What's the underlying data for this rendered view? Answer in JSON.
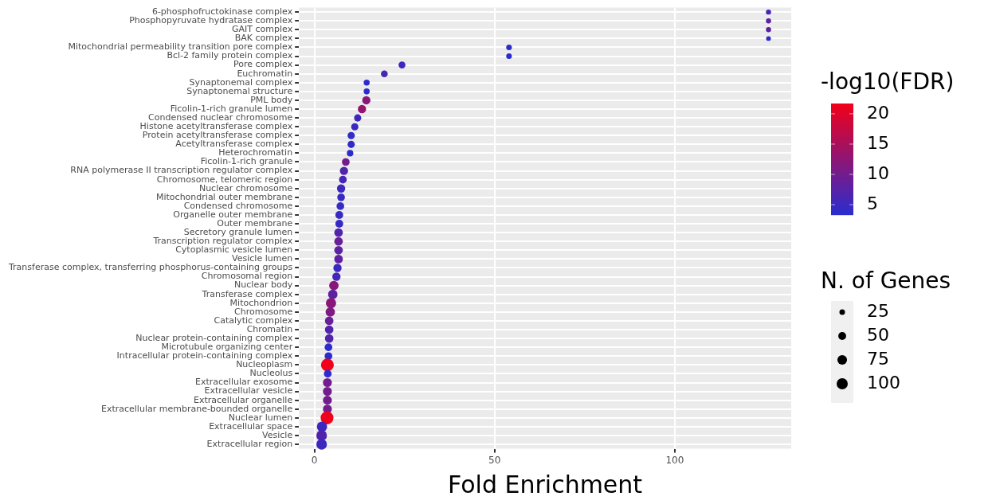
{
  "chart_data": {
    "type": "bubble",
    "orientation": "horizontal",
    "xlabel": "Fold Enrichment",
    "clabel": "-log10(FDR)",
    "legend_title": "N. of Genes",
    "categories": [
      "6-phosphofructokinase complex",
      "Phosphopyruvate hydratase complex",
      "GAIT complex",
      "BAK complex",
      "Mitochondrial permeability transition pore complex",
      "Bcl-2 family protein complex",
      "Pore complex",
      "Euchromatin",
      "Synaptonemal complex",
      "Synaptonemal structure",
      "PML body",
      "Ficolin-1-rich granule lumen",
      "Condensed nuclear chromosome",
      "Histone acetyltransferase complex",
      "Protein acetyltransferase complex",
      "Acetyltransferase complex",
      "Heterochromatin",
      "Ficolin-1-rich granule",
      "RNA polymerase II transcription regulator complex",
      "Chromosome, telomeric region",
      "Nuclear chromosome",
      "Mitochondrial outer membrane",
      "Condensed chromosome",
      "Organelle outer membrane",
      "Outer membrane",
      "Secretory granule lumen",
      "Transcription regulator complex",
      "Cytoplasmic vesicle lumen",
      "Vesicle lumen",
      "Transferase complex, transferring phosphorus-containing groups",
      "Chromosomal region",
      "Nuclear body",
      "Transferase complex",
      "Mitochondrion",
      "Chromosome",
      "Catalytic complex",
      "Chromatin",
      "Nuclear protein-containing complex",
      "Microtubule organizing center",
      "Intracellular protein-containing complex",
      "Nucleoplasm",
      "Nucleolus",
      "Extracellular exosome",
      "Extracellular vesicle",
      "Extracellular organelle",
      "Extracellular membrane-bounded organelle",
      "Nuclear lumen",
      "Extracellular space",
      "Vesicle",
      "Extracellular region"
    ],
    "values": [
      126,
      126,
      126,
      126,
      54,
      54,
      24.3,
      19.4,
      14.5,
      14.5,
      14.4,
      13.2,
      12,
      11.2,
      10.2,
      10.2,
      9.9,
      8.7,
      8.2,
      7.9,
      7.4,
      7.4,
      7.2,
      6.9,
      6.9,
      6.7,
      6.7,
      6.7,
      6.7,
      6.4,
      6.1,
      5.4,
      5.1,
      4.6,
      4.4,
      4.1,
      4.1,
      4.1,
      3.9,
      3.9,
      3.6,
      3.7,
      3.6,
      3.6,
      3.6,
      3.6,
      3.5,
      2.1,
      2,
      2
    ],
    "sizes": [
      21,
      21,
      21,
      18,
      26,
      26,
      38,
      38,
      29,
      29,
      55,
      55,
      42,
      42,
      42,
      42,
      34,
      48,
      55,
      48,
      55,
      48,
      48,
      50,
      50,
      59,
      59,
      59,
      59,
      55,
      55,
      72,
      72,
      85,
      72,
      59,
      59,
      59,
      48,
      48,
      133,
      48,
      64,
      64,
      64,
      64,
      133,
      85,
      91,
      91
    ],
    "cvalues": [
      6,
      8,
      8,
      3.5,
      3.5,
      3.5,
      5,
      6,
      3.5,
      3.5,
      12,
      13,
      5,
      5,
      4,
      4,
      3.5,
      10,
      7,
      6,
      5,
      4.5,
      4.5,
      4.5,
      4.5,
      7,
      9,
      8,
      8,
      5,
      5.5,
      12,
      8,
      12,
      11,
      9,
      7,
      7,
      3.5,
      3.5,
      21.5,
      3.5,
      10,
      10,
      10,
      10,
      21.5,
      5,
      7,
      5
    ],
    "colors": [
      "#4726b5",
      "#5d21a1",
      "#5d21a1",
      "#2c2cce",
      "#2c2cce",
      "#2c2cce",
      "#3c28bf",
      "#4726b5",
      "#2c2cce",
      "#2c2cce",
      "#891779",
      "#93156f",
      "#3c28bf",
      "#3c28bf",
      "#312bc9",
      "#312bc9",
      "#2c2cce",
      "#731c8d",
      "#5223ab",
      "#4726b5",
      "#3c28bf",
      "#372ac4",
      "#372ac4",
      "#372ac4",
      "#372ac4",
      "#5223ab",
      "#681f97",
      "#5d21a1",
      "#5d21a1",
      "#3c28bf",
      "#4227ba",
      "#891779",
      "#5d21a1",
      "#891779",
      "#7e1a83",
      "#681f97",
      "#5223ab",
      "#5223ab",
      "#2c2cce",
      "#2c2cce",
      "#f0001a",
      "#2c2cce",
      "#731c8d",
      "#731c8d",
      "#731c8d",
      "#731c8d",
      "#f0001a",
      "#3c28bf",
      "#5223ab",
      "#3c28bf"
    ],
    "clim": [
      3.3,
      21.7
    ],
    "cticks": [
      5,
      10,
      15,
      20
    ],
    "size_legend": [
      25,
      50,
      75,
      100
    ],
    "xlim": [
      -4.3,
      132.3
    ],
    "xticks": [
      0,
      50,
      100
    ],
    "grid": true
  }
}
